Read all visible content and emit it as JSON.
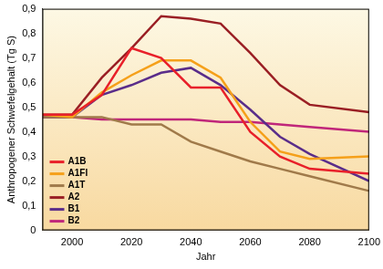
{
  "chart_data": {
    "type": "line",
    "x_label": "Jahr",
    "y_label": "Anthropogener Schwefelgehalt (Tg S)",
    "x": [
      1990,
      2000,
      2010,
      2020,
      2030,
      2040,
      2050,
      2060,
      2070,
      2080,
      2100
    ],
    "series": [
      {
        "name": "A1B",
        "color": "#e8202a",
        "values": [
          0.47,
          0.47,
          0.55,
          0.74,
          0.7,
          0.58,
          0.58,
          0.4,
          0.3,
          0.25,
          0.23
        ]
      },
      {
        "name": "A1FI",
        "color": "#f5a01a",
        "values": [
          0.47,
          0.46,
          0.56,
          0.63,
          0.69,
          0.69,
          0.62,
          0.44,
          0.32,
          0.29,
          0.3
        ]
      },
      {
        "name": "A1T",
        "color": "#a07a4a",
        "values": [
          0.46,
          0.46,
          0.46,
          0.43,
          0.43,
          0.36,
          0.32,
          0.28,
          0.25,
          0.22,
          0.16
        ]
      },
      {
        "name": "A2",
        "color": "#9a1f24",
        "values": [
          0.47,
          0.47,
          0.62,
          0.74,
          0.87,
          0.86,
          0.84,
          0.72,
          0.59,
          0.51,
          0.48
        ]
      },
      {
        "name": "B1",
        "color": "#5a2d8a",
        "values": [
          0.46,
          0.46,
          0.55,
          0.59,
          0.64,
          0.66,
          0.59,
          0.49,
          0.38,
          0.31,
          0.2
        ]
      },
      {
        "name": "B2",
        "color": "#c0267a",
        "values": [
          0.46,
          0.46,
          0.45,
          0.45,
          0.45,
          0.45,
          0.44,
          0.44,
          0.43,
          0.42,
          0.4
        ]
      }
    ],
    "xlim": [
      1990,
      2100
    ],
    "xticks": [
      2000,
      2020,
      2040,
      2060,
      2080,
      2100
    ],
    "ylim": [
      0,
      0.9
    ],
    "yticks": [
      0,
      {
        "value": 0.1,
        "label": "0,1"
      },
      {
        "value": 0.2,
        "label": "0,2"
      },
      {
        "value": 0.3,
        "label": "0,3"
      },
      {
        "value": 0.4,
        "label": "0,4"
      },
      {
        "value": 0.5,
        "label": "0,5"
      },
      {
        "value": 0.6,
        "label": "0,6"
      },
      {
        "value": 0.7,
        "label": "0,7"
      },
      {
        "value": 0.8,
        "label": "0,8"
      },
      {
        "value": 0.9,
        "label": "0,9"
      }
    ],
    "grid": false,
    "legend": "lower left"
  }
}
